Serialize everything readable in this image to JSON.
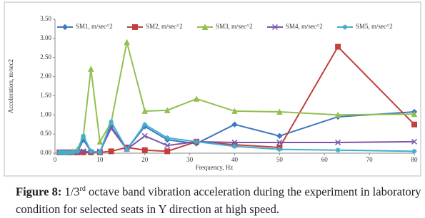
{
  "chart_data": {
    "type": "line",
    "x_label": "Frequency, Hz",
    "y_label": "Acceleration, m/sec2",
    "x": [
      1,
      1.25,
      1.6,
      2,
      2.5,
      3.15,
      4,
      5,
      6.3,
      8,
      10,
      12.5,
      16,
      20,
      25,
      31.5,
      40,
      50,
      63,
      80
    ],
    "series": [
      {
        "name": "SM1, m/sec^2",
        "color": "#3c78c0",
        "marker": "diamond",
        "values": [
          0.02,
          0.02,
          0.02,
          0.02,
          0.02,
          0.02,
          0.02,
          0.03,
          0.35,
          0.05,
          0.02,
          0.7,
          0.1,
          0.7,
          0.35,
          0.25,
          0.75,
          0.45,
          0.95,
          1.08
        ]
      },
      {
        "name": "SM2, m/sec^2",
        "color": "#c0403c",
        "marker": "square",
        "values": [
          0.02,
          0.02,
          0.02,
          0.02,
          0.02,
          0.02,
          0.02,
          0.02,
          0.02,
          0.02,
          0.02,
          0.05,
          0.15,
          0.08,
          0.05,
          0.3,
          0.22,
          0.15,
          2.78,
          0.75
        ]
      },
      {
        "name": "SM3, m/sec^2",
        "color": "#92c050",
        "marker": "triangle",
        "values": [
          0.02,
          0.02,
          0.02,
          0.02,
          0.02,
          0.03,
          0.05,
          0.1,
          0.45,
          2.2,
          0.3,
          0.8,
          2.9,
          1.1,
          1.12,
          1.42,
          1.1,
          1.08,
          1.0,
          1.02
        ]
      },
      {
        "name": "SM4, m/sec^2",
        "color": "#7b56a6",
        "marker": "cross",
        "values": [
          0.02,
          0.02,
          0.02,
          0.02,
          0.02,
          0.02,
          0.02,
          0.03,
          0.05,
          0.02,
          0.05,
          0.65,
          0.1,
          0.45,
          0.2,
          0.3,
          0.28,
          0.28,
          0.28,
          0.3
        ]
      },
      {
        "name": "SM5, m/sec^2",
        "color": "#40aed0",
        "marker": "star",
        "values": [
          0.02,
          0.02,
          0.02,
          0.02,
          0.02,
          0.02,
          0.02,
          0.05,
          0.45,
          0.05,
          0.02,
          0.82,
          0.1,
          0.75,
          0.4,
          0.3,
          0.18,
          0.1,
          0.08,
          0.05
        ]
      }
    ],
    "xlim": [
      0,
      80
    ],
    "xticks": [
      0,
      10,
      20,
      30,
      40,
      50,
      60,
      70,
      80
    ],
    "ylim": [
      0,
      3.5
    ],
    "yticks": [
      {
        "value": 0,
        "label": "0.00"
      },
      {
        "value": 0.5,
        "label": "0.50"
      },
      {
        "value": 1,
        "label": "1.00"
      },
      {
        "value": 1.5,
        "label": "1.50"
      },
      {
        "value": 2,
        "label": "2.00"
      },
      {
        "value": 2.5,
        "label": "2.50"
      },
      {
        "value": 3,
        "label": "3.00"
      },
      {
        "value": 3.5,
        "label": "3.50"
      }
    ],
    "grid": false,
    "legend": "top"
  },
  "caption": {
    "label": "Figure 8:",
    "fraction": "1/3",
    "superscript": "rd",
    "text": "octave band vibration acceleration during the experiment in laboratory condition for selected seats in Y direction at high speed."
  }
}
